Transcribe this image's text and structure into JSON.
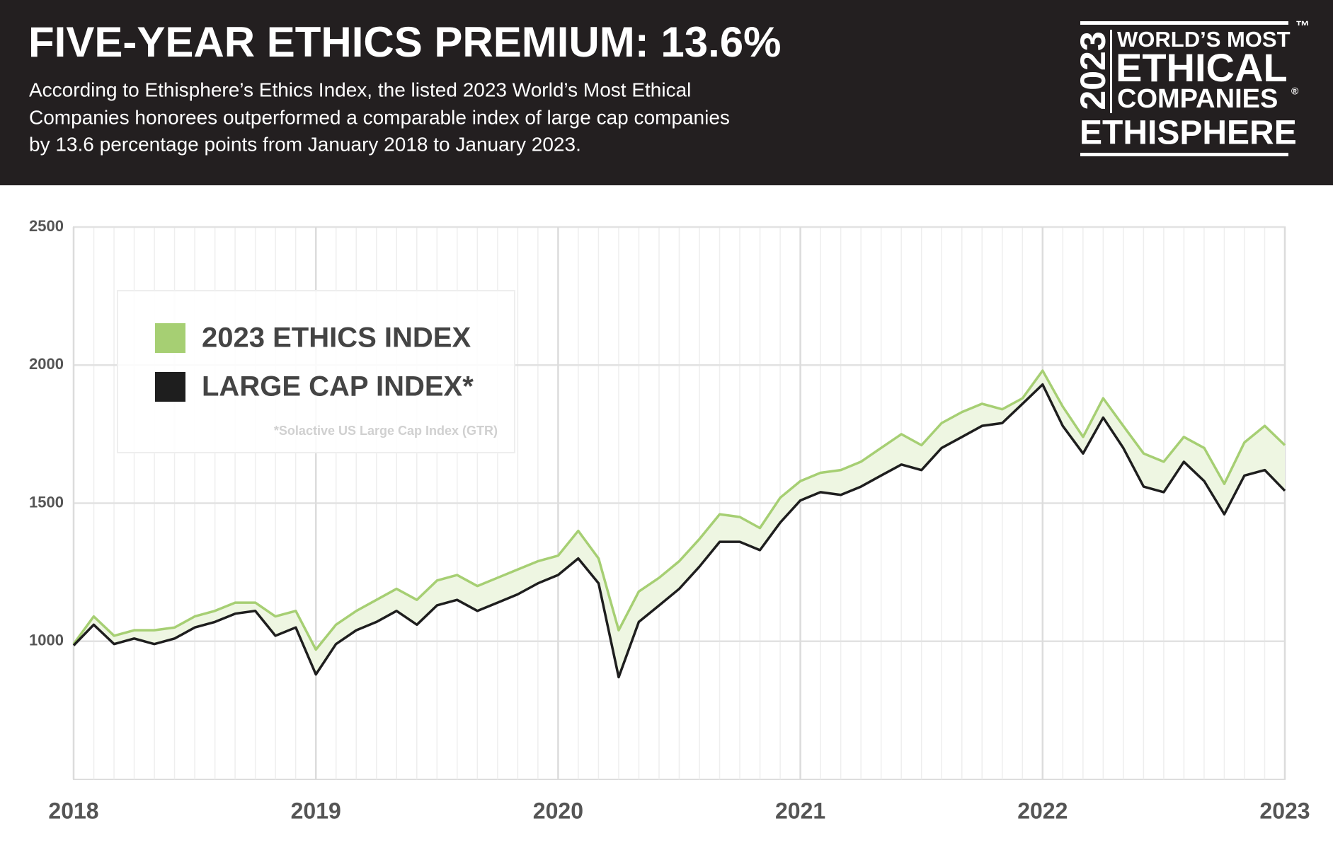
{
  "header": {
    "title": "FIVE-YEAR ETHICS PREMIUM: 13.6%",
    "subtitle": [
      "According to Ethisphere’s Ethics Index, the listed 2023 World’s Most Ethical",
      "Companies honorees outperformed a comparable index of large cap companies",
      "by 13.6 percentage points from January 2018 to January 2023."
    ],
    "logo": {
      "year": "2023",
      "line1": "WORLD’S MOST",
      "line2": "ETHICAL",
      "line3": "COMPANIES",
      "registered": "®",
      "trademark": "™",
      "brand": "ETHISPHERE"
    }
  },
  "chart_data": {
    "type": "line",
    "x": [
      2018,
      2018.083,
      2018.167,
      2018.25,
      2018.333,
      2018.417,
      2018.5,
      2018.583,
      2018.667,
      2018.75,
      2018.833,
      2018.917,
      2019,
      2019.083,
      2019.167,
      2019.25,
      2019.333,
      2019.417,
      2019.5,
      2019.583,
      2019.667,
      2019.75,
      2019.833,
      2019.917,
      2020,
      2020.083,
      2020.167,
      2020.25,
      2020.333,
      2020.417,
      2020.5,
      2020.583,
      2020.667,
      2020.75,
      2020.833,
      2020.917,
      2021,
      2021.083,
      2021.167,
      2021.25,
      2021.333,
      2021.417,
      2021.5,
      2021.583,
      2021.667,
      2021.75,
      2021.833,
      2021.917,
      2022,
      2022.083,
      2022.167,
      2022.25,
      2022.333,
      2022.417,
      2022.5,
      2022.583,
      2022.667,
      2022.75,
      2022.833,
      2022.917,
      2023
    ],
    "series": [
      {
        "name": "2023 ETHICS INDEX",
        "color": "#a6cf73",
        "values": [
          990,
          1090,
          1020,
          1040,
          1040,
          1050,
          1090,
          1110,
          1140,
          1140,
          1090,
          1110,
          970,
          1060,
          1110,
          1150,
          1190,
          1150,
          1220,
          1240,
          1200,
          1230,
          1260,
          1290,
          1310,
          1400,
          1300,
          1040,
          1180,
          1230,
          1290,
          1370,
          1460,
          1450,
          1410,
          1520,
          1580,
          1610,
          1620,
          1650,
          1700,
          1750,
          1710,
          1790,
          1830,
          1860,
          1840,
          1880,
          1980,
          1850,
          1740,
          1880,
          1780,
          1680,
          1650,
          1740,
          1700,
          1570,
          1720,
          1780,
          1710
        ]
      },
      {
        "name": "LARGE CAP INDEX*",
        "color": "#1e1e1e",
        "values": [
          985,
          1060,
          990,
          1010,
          990,
          1010,
          1050,
          1070,
          1100,
          1110,
          1020,
          1050,
          880,
          990,
          1040,
          1070,
          1110,
          1060,
          1130,
          1150,
          1110,
          1140,
          1170,
          1210,
          1240,
          1300,
          1210,
          870,
          1070,
          1130,
          1190,
          1270,
          1360,
          1360,
          1330,
          1430,
          1510,
          1540,
          1530,
          1560,
          1600,
          1640,
          1620,
          1700,
          1740,
          1780,
          1790,
          1860,
          1930,
          1780,
          1680,
          1810,
          1700,
          1560,
          1540,
          1650,
          1580,
          1460,
          1600,
          1620,
          1545
        ]
      }
    ],
    "annotation": "*Solactive US Large Cap Index (GTR)",
    "xlim": [
      2018,
      2023
    ],
    "xticks": [
      2018,
      2019,
      2020,
      2021,
      2022,
      2023
    ],
    "ylim": [
      500,
      2500
    ],
    "yticks": [
      1000,
      1500,
      2000,
      2500
    ],
    "grid": true,
    "legend": "upper left"
  }
}
